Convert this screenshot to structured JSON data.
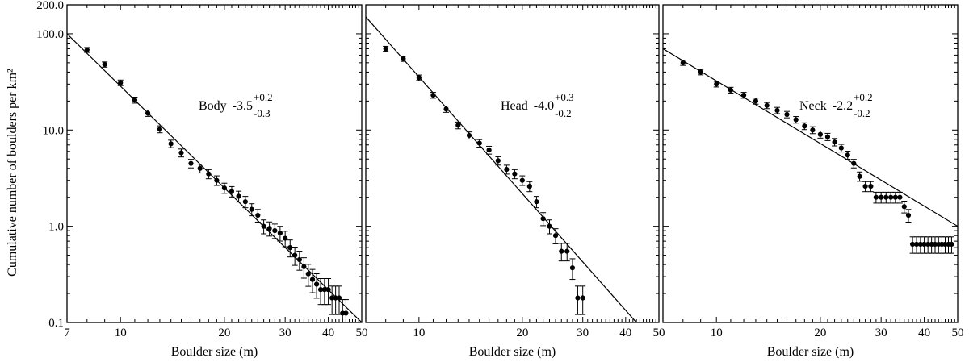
{
  "chart_data": {
    "type": "scatter",
    "ylabel": "Cumulative number of boulders per km²",
    "yscale": "log",
    "xscale": "log",
    "ylim": [
      0.1,
      200.0
    ],
    "yticks": [
      "200.0",
      "100.0",
      "10.0",
      "1.0",
      "0.1"
    ],
    "grid": false,
    "panels": [
      {
        "label": "Body",
        "slope": "-3.5",
        "slope_plus": "+0.2",
        "slope_minus": "-0.3",
        "xlabel": "Boulder size (m)",
        "xlim": [
          7,
          50
        ],
        "xticks": [
          "7",
          "10",
          "20",
          "30",
          "40",
          "50"
        ],
        "fit": {
          "x": [
            7,
            50
          ],
          "y": [
            100,
            0.1
          ]
        },
        "points": [
          {
            "x": 8.0,
            "y": 68
          },
          {
            "x": 9.0,
            "y": 48
          },
          {
            "x": 10.0,
            "y": 31
          },
          {
            "x": 11.0,
            "y": 20.5
          },
          {
            "x": 12.0,
            "y": 15
          },
          {
            "x": 13.0,
            "y": 10.2
          },
          {
            "x": 14.0,
            "y": 7.2
          },
          {
            "x": 15.0,
            "y": 5.8
          },
          {
            "x": 16.0,
            "y": 4.5
          },
          {
            "x": 17.0,
            "y": 4.0
          },
          {
            "x": 18.0,
            "y": 3.5
          },
          {
            "x": 19.0,
            "y": 3.0
          },
          {
            "x": 20.0,
            "y": 2.5
          },
          {
            "x": 21.0,
            "y": 2.3
          },
          {
            "x": 22.0,
            "y": 2.05
          },
          {
            "x": 23.0,
            "y": 1.8
          },
          {
            "x": 24.0,
            "y": 1.5
          },
          {
            "x": 25.0,
            "y": 1.3
          },
          {
            "x": 26.0,
            "y": 1.0
          },
          {
            "x": 27.0,
            "y": 0.95
          },
          {
            "x": 28.0,
            "y": 0.9
          },
          {
            "x": 29.0,
            "y": 0.85
          },
          {
            "x": 30.0,
            "y": 0.75
          },
          {
            "x": 31.0,
            "y": 0.6
          },
          {
            "x": 32.0,
            "y": 0.5
          },
          {
            "x": 33.0,
            "y": 0.45
          },
          {
            "x": 34.0,
            "y": 0.38
          },
          {
            "x": 35.0,
            "y": 0.32
          },
          {
            "x": 36.0,
            "y": 0.28
          },
          {
            "x": 37.0,
            "y": 0.25
          },
          {
            "x": 38.0,
            "y": 0.22
          },
          {
            "x": 39.0,
            "y": 0.22
          },
          {
            "x": 40.0,
            "y": 0.22
          },
          {
            "x": 41.0,
            "y": 0.18
          },
          {
            "x": 42.0,
            "y": 0.18
          },
          {
            "x": 43.0,
            "y": 0.18
          },
          {
            "x": 44.0,
            "y": 0.125
          },
          {
            "x": 45.0,
            "y": 0.125
          }
        ]
      },
      {
        "label": "Head",
        "slope": "-4.0",
        "slope_plus": "+0.3",
        "slope_minus": "-0.2",
        "xlabel": "Boulder size (m)",
        "xlim": [
          7,
          50
        ],
        "xticks": [
          "10",
          "20",
          "30",
          "40",
          "50"
        ],
        "fit": {
          "x": [
            7,
            43
          ],
          "y": [
            150,
            0.1
          ]
        },
        "points": [
          {
            "x": 8.0,
            "y": 70
          },
          {
            "x": 9.0,
            "y": 55
          },
          {
            "x": 10.0,
            "y": 35
          },
          {
            "x": 11.0,
            "y": 23
          },
          {
            "x": 12.0,
            "y": 16.5
          },
          {
            "x": 13.0,
            "y": 11.2
          },
          {
            "x": 14.0,
            "y": 8.8
          },
          {
            "x": 15.0,
            "y": 7.3
          },
          {
            "x": 16.0,
            "y": 6.2
          },
          {
            "x": 17.0,
            "y": 4.8
          },
          {
            "x": 18.0,
            "y": 3.9
          },
          {
            "x": 19.0,
            "y": 3.5
          },
          {
            "x": 20.0,
            "y": 3.0
          },
          {
            "x": 21.0,
            "y": 2.6
          },
          {
            "x": 22.0,
            "y": 1.8
          },
          {
            "x": 23.0,
            "y": 1.2
          },
          {
            "x": 24.0,
            "y": 1.0
          },
          {
            "x": 25.0,
            "y": 0.8
          },
          {
            "x": 26.0,
            "y": 0.55
          },
          {
            "x": 27.0,
            "y": 0.55
          },
          {
            "x": 28.0,
            "y": 0.37
          },
          {
            "x": 29.0,
            "y": 0.18
          },
          {
            "x": 30.0,
            "y": 0.18
          }
        ]
      },
      {
        "label": "Neck",
        "slope": "-2.2",
        "slope_plus": "+0.2",
        "slope_minus": "-0.2",
        "xlabel": "Boulder size (m)",
        "xlim": [
          7,
          50
        ],
        "xticks": [
          "10",
          "20",
          "30",
          "40",
          "50"
        ],
        "fit": {
          "x": [
            7,
            50
          ],
          "y": [
            70,
            1.0
          ]
        },
        "points": [
          {
            "x": 8.0,
            "y": 50
          },
          {
            "x": 9.0,
            "y": 40
          },
          {
            "x": 10.0,
            "y": 30
          },
          {
            "x": 11.0,
            "y": 26
          },
          {
            "x": 12.0,
            "y": 23
          },
          {
            "x": 13.0,
            "y": 20
          },
          {
            "x": 14.0,
            "y": 18
          },
          {
            "x": 15.0,
            "y": 16
          },
          {
            "x": 16.0,
            "y": 14.5
          },
          {
            "x": 17.0,
            "y": 12.8
          },
          {
            "x": 18.0,
            "y": 11.0
          },
          {
            "x": 19.0,
            "y": 10.0
          },
          {
            "x": 20.0,
            "y": 9.0
          },
          {
            "x": 21.0,
            "y": 8.5
          },
          {
            "x": 22.0,
            "y": 7.5
          },
          {
            "x": 23.0,
            "y": 6.5
          },
          {
            "x": 24.0,
            "y": 5.5
          },
          {
            "x": 25.0,
            "y": 4.5
          },
          {
            "x": 26.0,
            "y": 3.3
          },
          {
            "x": 27.0,
            "y": 2.6
          },
          {
            "x": 28.0,
            "y": 2.6
          },
          {
            "x": 29.0,
            "y": 2.0
          },
          {
            "x": 30.0,
            "y": 2.0
          },
          {
            "x": 31.0,
            "y": 2.0
          },
          {
            "x": 32.0,
            "y": 2.0
          },
          {
            "x": 33.0,
            "y": 2.0
          },
          {
            "x": 34.0,
            "y": 2.0
          },
          {
            "x": 35.0,
            "y": 1.6
          },
          {
            "x": 36.0,
            "y": 1.3
          },
          {
            "x": 37.0,
            "y": 0.65
          },
          {
            "x": 38.0,
            "y": 0.65
          },
          {
            "x": 39.0,
            "y": 0.65
          },
          {
            "x": 40.0,
            "y": 0.65
          },
          {
            "x": 41.0,
            "y": 0.65
          },
          {
            "x": 42.0,
            "y": 0.65
          },
          {
            "x": 43.0,
            "y": 0.65
          },
          {
            "x": 44.0,
            "y": 0.65
          },
          {
            "x": 45.0,
            "y": 0.65
          },
          {
            "x": 46.0,
            "y": 0.65
          },
          {
            "x": 47.0,
            "y": 0.65
          },
          {
            "x": 48.0,
            "y": 0.65
          }
        ]
      }
    ]
  }
}
